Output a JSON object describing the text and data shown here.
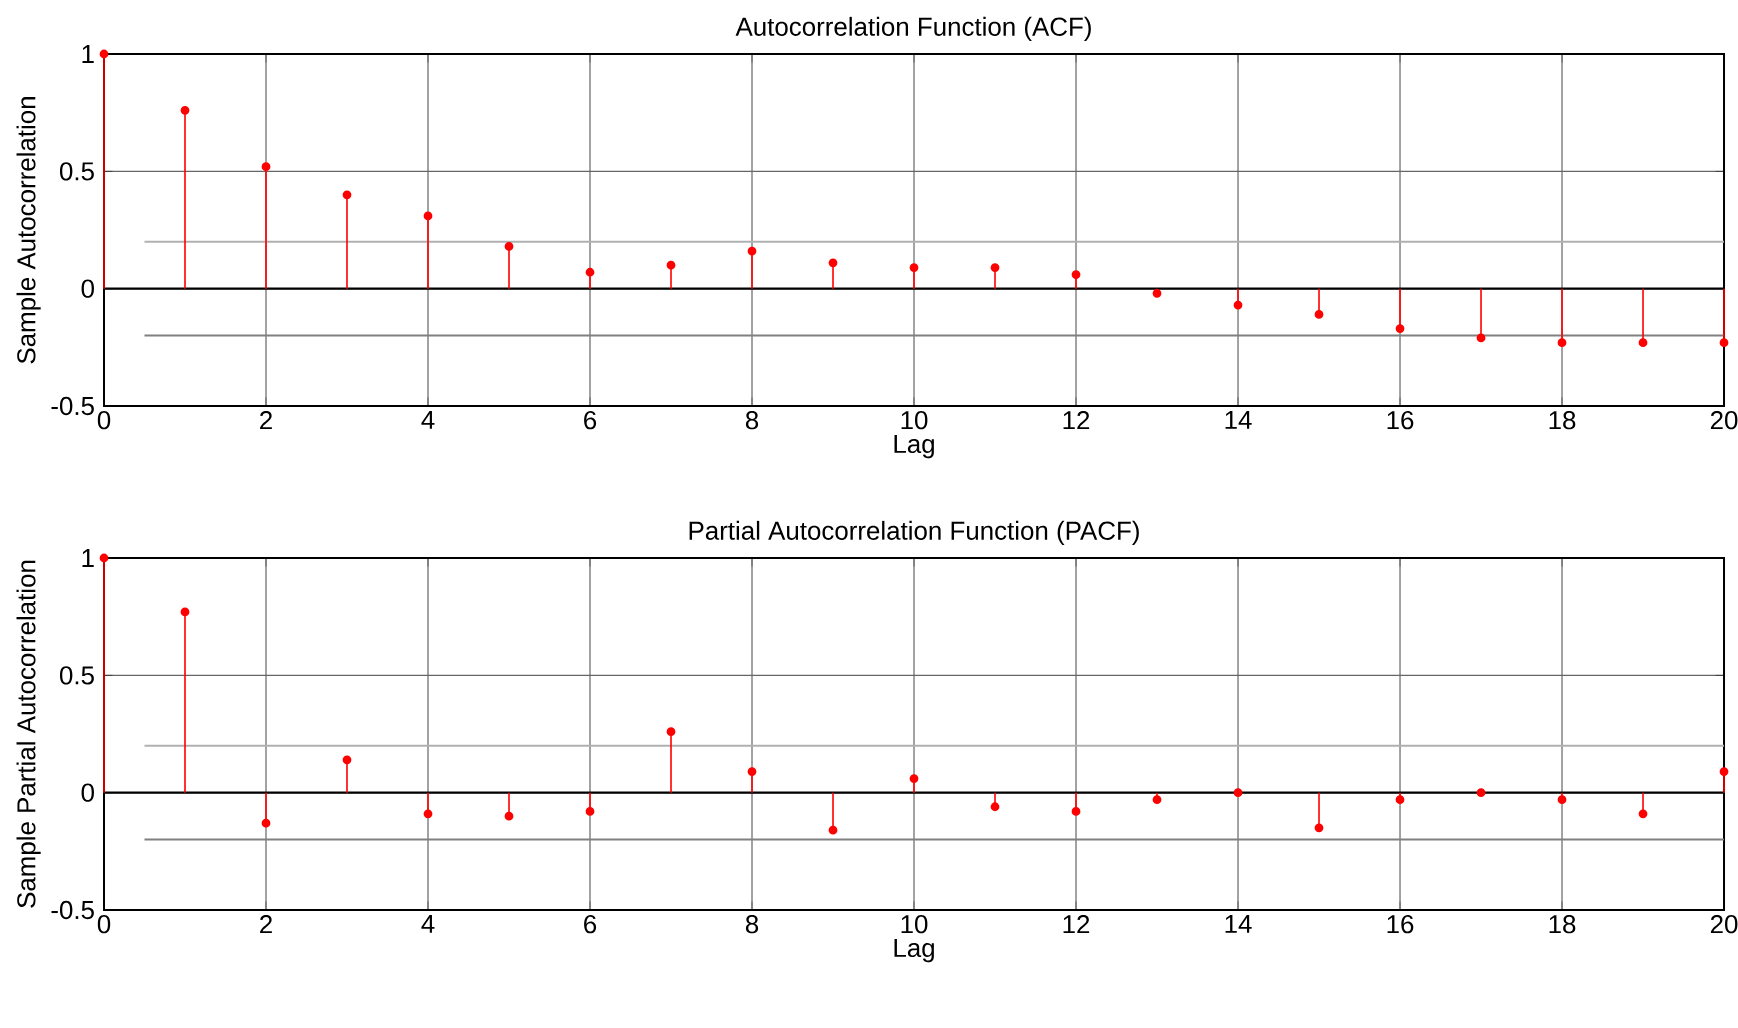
{
  "chart_data": [
    {
      "type": "lollipop",
      "title": "Autocorrelation Function (ACF)",
      "xlabel": "Lag",
      "ylabel": "Sample Autocorrelation",
      "x": [
        0,
        1,
        2,
        3,
        4,
        5,
        6,
        7,
        8,
        9,
        10,
        11,
        12,
        13,
        14,
        15,
        16,
        17,
        18,
        19,
        20
      ],
      "values": [
        1,
        0.76,
        0.52,
        0.4,
        0.31,
        0.18,
        0.07,
        0.1,
        0.16,
        0.11,
        0.09,
        0.09,
        0.06,
        -0.02,
        -0.07,
        -0.11,
        -0.17,
        -0.21,
        -0.23,
        -0.23,
        -0.23
      ],
      "color": "#ff0000",
      "marker": "circle",
      "grid": true,
      "xlim": [
        0,
        20
      ],
      "ylim": [
        -0.5,
        1
      ],
      "xticks": [
        0,
        2,
        4,
        6,
        8,
        10,
        12,
        14,
        16,
        18,
        20
      ],
      "yticks": [
        -0.5,
        0,
        0.5,
        1
      ],
      "ref_lines": [
        {
          "axis": "y",
          "value": 0.2,
          "color": "#b0b0b0"
        },
        {
          "axis": "y",
          "value": -0.2,
          "color": "#808080"
        }
      ]
    },
    {
      "type": "lollipop",
      "title": "Partial Autocorrelation Function (PACF)",
      "xlabel": "Lag",
      "ylabel": "Sample Partial Autocorrelation",
      "x": [
        0,
        1,
        2,
        3,
        4,
        5,
        6,
        7,
        8,
        9,
        10,
        11,
        12,
        13,
        14,
        15,
        16,
        17,
        18,
        19,
        20
      ],
      "values": [
        1,
        0.77,
        -0.13,
        0.14,
        -0.09,
        -0.1,
        -0.08,
        0.26,
        0.09,
        -0.16,
        0.06,
        -0.06,
        -0.08,
        -0.03,
        0.0,
        -0.15,
        -0.03,
        0.0,
        -0.03,
        -0.09,
        0.09
      ],
      "color": "#ff0000",
      "marker": "circle",
      "grid": true,
      "xlim": [
        0,
        20
      ],
      "ylim": [
        -0.5,
        1
      ],
      "xticks": [
        0,
        2,
        4,
        6,
        8,
        10,
        12,
        14,
        16,
        18,
        20
      ],
      "yticks": [
        -0.5,
        0,
        0.5,
        1
      ],
      "ref_lines": [
        {
          "axis": "y",
          "value": 0.2,
          "color": "#b0b0b0"
        },
        {
          "axis": "y",
          "value": -0.2,
          "color": "#808080"
        }
      ]
    }
  ]
}
